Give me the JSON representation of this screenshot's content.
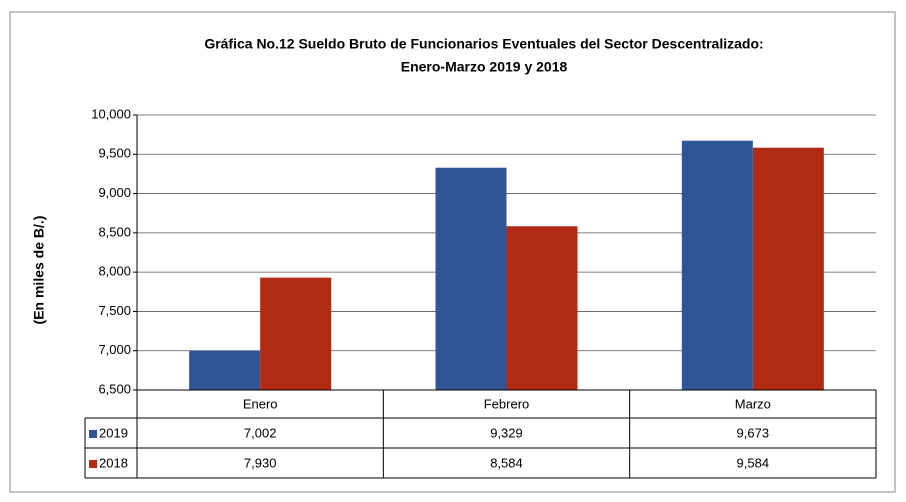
{
  "chart_data": {
    "type": "bar",
    "title": "Gráfica No.12 Sueldo Bruto de Funcionarios Eventuales del Sector Descentralizado:",
    "subtitle": "Enero-Marzo 2019 y 2018",
    "y_label": "(En miles de B/.)",
    "categories": [
      "Enero",
      "Febrero",
      "Marzo"
    ],
    "series": [
      {
        "name": "2019",
        "color": "#2f5597",
        "values": [
          7002,
          9329,
          9673
        ],
        "value_labels": [
          "7,002",
          "9,329",
          "9,673"
        ]
      },
      {
        "name": "2018",
        "color": "#b02a14",
        "values": [
          7930,
          8584,
          9584
        ],
        "value_labels": [
          "7,930",
          "8,584",
          "9,584"
        ]
      }
    ],
    "ylim": [
      6500,
      10000
    ],
    "yticks": [
      {
        "value": 6500,
        "label": "6,500"
      },
      {
        "value": 7000,
        "label": "7,000"
      },
      {
        "value": 7500,
        "label": "7,500"
      },
      {
        "value": 8000,
        "label": "8,000"
      },
      {
        "value": 8500,
        "label": "8,500"
      },
      {
        "value": 9000,
        "label": "9,000"
      },
      {
        "value": 9500,
        "label": "9,500"
      },
      {
        "value": 10000,
        "label": "10,000"
      }
    ],
    "grid": true
  }
}
